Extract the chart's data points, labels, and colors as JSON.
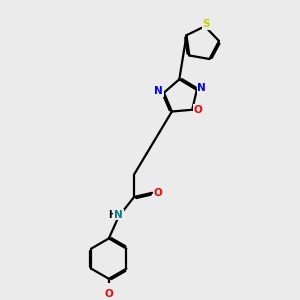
{
  "background_color": "#ebebeb",
  "atom_colors": {
    "C": "#000000",
    "N": "#0000ff",
    "O": "#ff0000",
    "S": "#cccc00",
    "H": "#000000",
    "NH": "#008080"
  },
  "bond_color": "#000000",
  "bond_width": 1.6,
  "dbo": 0.055,
  "figsize": [
    3.0,
    3.0
  ],
  "dpi": 100
}
